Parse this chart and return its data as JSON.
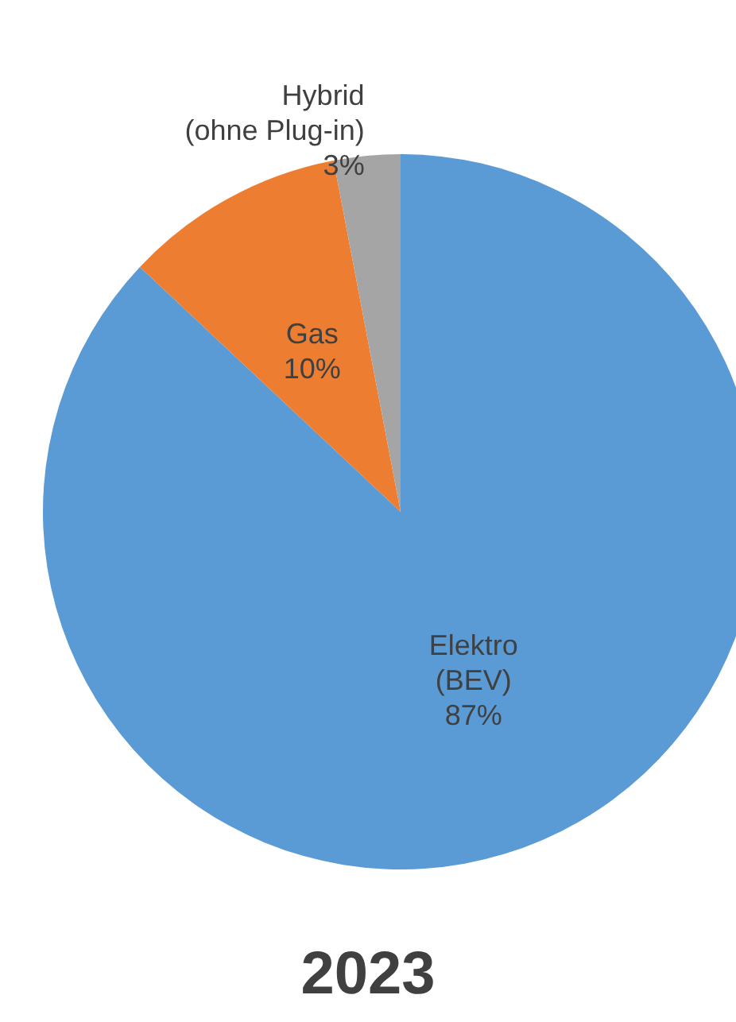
{
  "chart_data": {
    "type": "pie",
    "title": "2023",
    "categories": [
      "Elektro\n(BEV)",
      "Gas",
      "Hybrid\n(ohne Plug-in)"
    ],
    "values": [
      87,
      10,
      3
    ],
    "colors": [
      "#5b9bd5",
      "#ed7d31",
      "#a5a5a5"
    ],
    "value_labels": [
      "87%",
      "10%",
      "3%"
    ],
    "legend": false
  }
}
